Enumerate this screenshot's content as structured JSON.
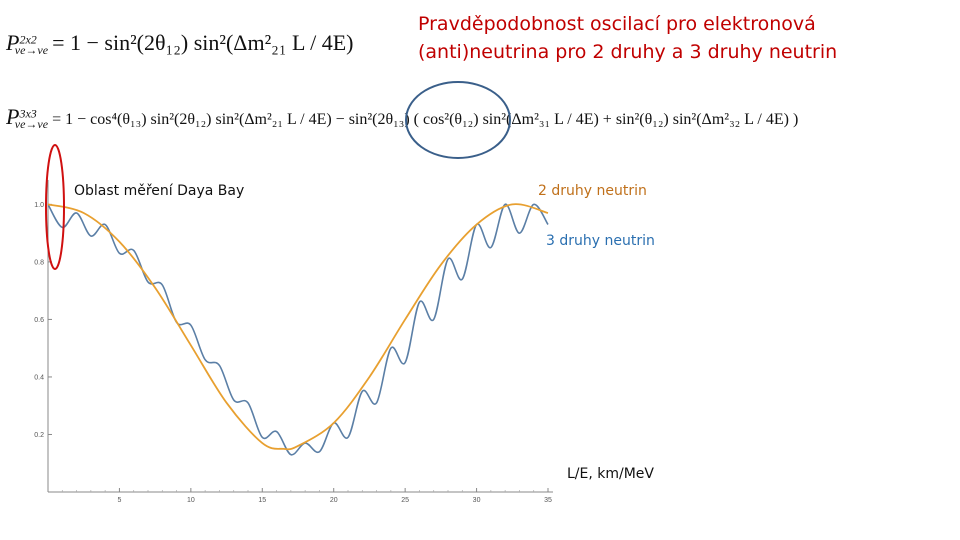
{
  "title": "Pravděpodobnost oscilací pro elektronová (anti)neutrina pro 2 druhy a 3 druhy neutrin",
  "formula_2x2": {
    "symbol": "P",
    "sup": "2x2",
    "sub": "νe→νe",
    "rhs": "= 1 − sin²(2θ₁₂) sin²(Δm²₂₁ L / 4E)"
  },
  "formula_3x3": {
    "symbol": "P",
    "sup": "3x3",
    "sub": "νe→νe",
    "rhs": "= 1 − cos⁴(θ₁₃) sin²(2θ₁₂) sin²(Δm²₂₁ L / 4E) − sin²(2θ₁₃) ( cos²(θ₁₂) sin²(Δm²₃₁ L / 4E) + sin²(θ₁₂) sin²(Δm²₃₂ L / 4E) )"
  },
  "annotations": {
    "daya_bay": "Oblast měření Daya Bay",
    "two_flavors": "2 druhy neutrin",
    "three_flavors": "3 druhy neutrin",
    "xlabel": "L/E, km/MeV"
  },
  "colors": {
    "title": "#c00000",
    "two_flavors": "#e8a030",
    "three_flavors": "#5b7fa6",
    "two_label": "#c0701a",
    "three_label": "#2a6fb0",
    "red_marker": "#d01010",
    "blue_marker": "#3a5f8a"
  },
  "chart_data": {
    "type": "line",
    "title": "",
    "xlabel": "L/E, km/MeV",
    "ylabel": "",
    "xlim": [
      0,
      35
    ],
    "ylim": [
      0,
      1.05
    ],
    "x_ticks": [
      5,
      10,
      15,
      20,
      25,
      30,
      35
    ],
    "y_ticks": [
      0.2,
      0.4,
      0.6,
      0.8,
      1.0
    ],
    "y_tick_labels": [
      "0.2",
      "0.4",
      "0.6",
      "0.8",
      "1.0"
    ],
    "series": [
      {
        "name": "2 druhy neutrin",
        "x": [
          0,
          2.5,
          5,
          7.5,
          10,
          12.5,
          15,
          16.5,
          17.5,
          20,
          22.5,
          25,
          27.5,
          30,
          32.5,
          35
        ],
        "values": [
          1.0,
          0.97,
          0.87,
          0.71,
          0.51,
          0.31,
          0.17,
          0.15,
          0.16,
          0.24,
          0.4,
          0.6,
          0.79,
          0.93,
          1.0,
          0.97
        ]
      },
      {
        "name": "3 druhy neutrin",
        "x": [
          0,
          1,
          2,
          3,
          4,
          5,
          6,
          7,
          8,
          9,
          10,
          11,
          12,
          13,
          14,
          15,
          16,
          17,
          18,
          19,
          20,
          21,
          22,
          23,
          24,
          25,
          26,
          27,
          28,
          29,
          30,
          31,
          32,
          33,
          34,
          35
        ],
        "values": [
          1.0,
          0.92,
          0.97,
          0.89,
          0.93,
          0.83,
          0.84,
          0.73,
          0.72,
          0.59,
          0.58,
          0.46,
          0.44,
          0.32,
          0.31,
          0.19,
          0.21,
          0.13,
          0.17,
          0.14,
          0.24,
          0.19,
          0.35,
          0.31,
          0.5,
          0.45,
          0.66,
          0.6,
          0.81,
          0.74,
          0.93,
          0.85,
          1.0,
          0.9,
          1.0,
          0.93
        ]
      }
    ]
  }
}
